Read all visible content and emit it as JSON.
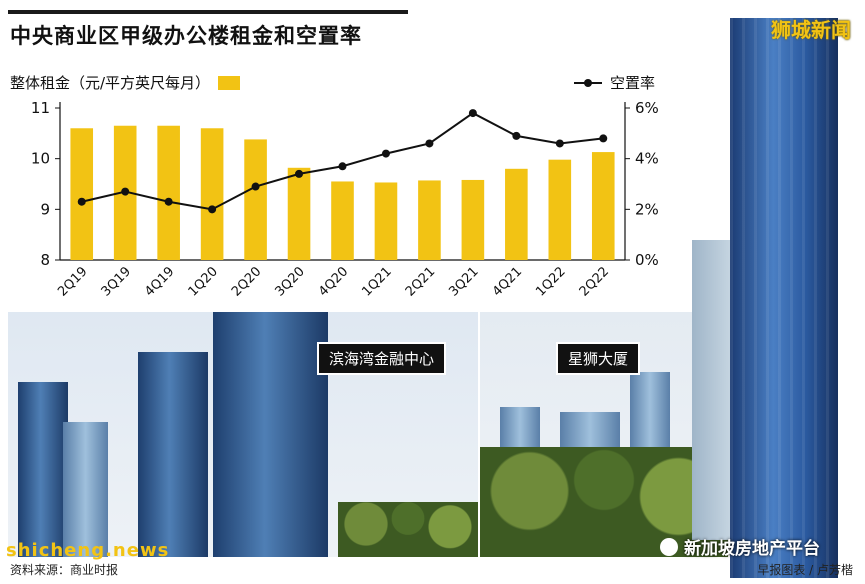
{
  "header": {
    "title": "中央商业区甲级办公楼租金和空置率",
    "watermark": "狮城新闻"
  },
  "legend": {
    "bar_label": "整体租金（元/平方英尺每月）",
    "line_label": "空置率"
  },
  "photos": {
    "left_label": "滨海湾金融中心",
    "right_label": "星狮大厦"
  },
  "footer": {
    "source": "资料来源：商业时报",
    "credit": "早报图表 / 卢芳楷",
    "watermark_left": "shicheng.news",
    "watermark_right": "新加坡房地产平台"
  },
  "colors": {
    "bar": "#f2c314",
    "line": "#111111"
  },
  "chart_data": {
    "type": "bar+line",
    "categories": [
      "2Q19",
      "3Q19",
      "4Q19",
      "1Q20",
      "2Q20",
      "3Q20",
      "4Q20",
      "1Q21",
      "2Q21",
      "3Q21",
      "4Q21",
      "1Q22",
      "2Q22"
    ],
    "series": [
      {
        "name": "整体租金（元/平方英尺每月）",
        "type": "bar",
        "axis": "left",
        "values": [
          10.6,
          10.65,
          10.65,
          10.6,
          10.38,
          9.82,
          9.55,
          9.53,
          9.57,
          9.58,
          9.8,
          9.98,
          10.13
        ]
      },
      {
        "name": "空置率",
        "type": "line",
        "axis": "right",
        "values": [
          2.3,
          2.7,
          2.3,
          2.0,
          2.9,
          3.4,
          3.7,
          4.2,
          4.6,
          5.8,
          4.9,
          4.6,
          4.8
        ]
      }
    ],
    "y_left": {
      "min": 8,
      "max": 11,
      "ticks": [
        8,
        9,
        10,
        11
      ]
    },
    "y_right": {
      "min": 0,
      "max": 6,
      "ticks": [
        "0%",
        "2%",
        "4%",
        "6%"
      ]
    }
  }
}
